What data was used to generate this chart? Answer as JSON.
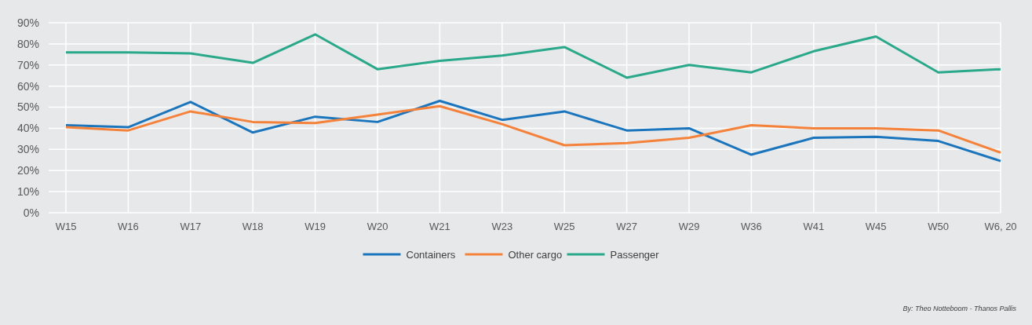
{
  "chart_data": {
    "type": "line",
    "categories": [
      "W15",
      "W16",
      "W17",
      "W18",
      "W19",
      "W20",
      "W21",
      "W23",
      "W25",
      "W27",
      "W29",
      "W36",
      "W41",
      "W45",
      "W50",
      "W6, 20"
    ],
    "series": [
      {
        "name": "Containers",
        "color": "#1b75bc",
        "values": [
          41.5,
          40.5,
          52.5,
          38,
          45.5,
          43,
          53,
          44,
          48,
          39,
          40,
          27.5,
          35.5,
          36,
          34,
          24.5
        ]
      },
      {
        "name": "Other cargo",
        "color": "#f5823a",
        "values": [
          40.5,
          39,
          48,
          43,
          42.5,
          46.5,
          50.5,
          42,
          32,
          33,
          35.5,
          41.5,
          40,
          40,
          39,
          28.5
        ]
      },
      {
        "name": "Passenger",
        "color": "#2aa88a",
        "values": [
          76,
          76,
          75.5,
          71,
          84.5,
          68,
          72,
          74.5,
          78.5,
          64,
          70,
          66.5,
          76.5,
          83.5,
          66.5,
          68
        ]
      }
    ],
    "ylim": [
      0,
      90
    ],
    "yticks": [
      {
        "value": 0,
        "label": "0%"
      },
      {
        "value": 10,
        "label": "10%"
      },
      {
        "value": 20,
        "label": "20%"
      },
      {
        "value": 30,
        "label": "30%"
      },
      {
        "value": 40,
        "label": "40%"
      },
      {
        "value": 50,
        "label": "50%"
      },
      {
        "value": 60,
        "label": "60%"
      },
      {
        "value": 70,
        "label": "70%"
      },
      {
        "value": 80,
        "label": "80%"
      },
      {
        "value": 90,
        "label": "90%"
      }
    ],
    "grid": true,
    "legend": "bottom",
    "marker": "none",
    "line_style": "solid",
    "annotations": [
      "By: Theo Notteboom - Thanos Pallis"
    ]
  }
}
